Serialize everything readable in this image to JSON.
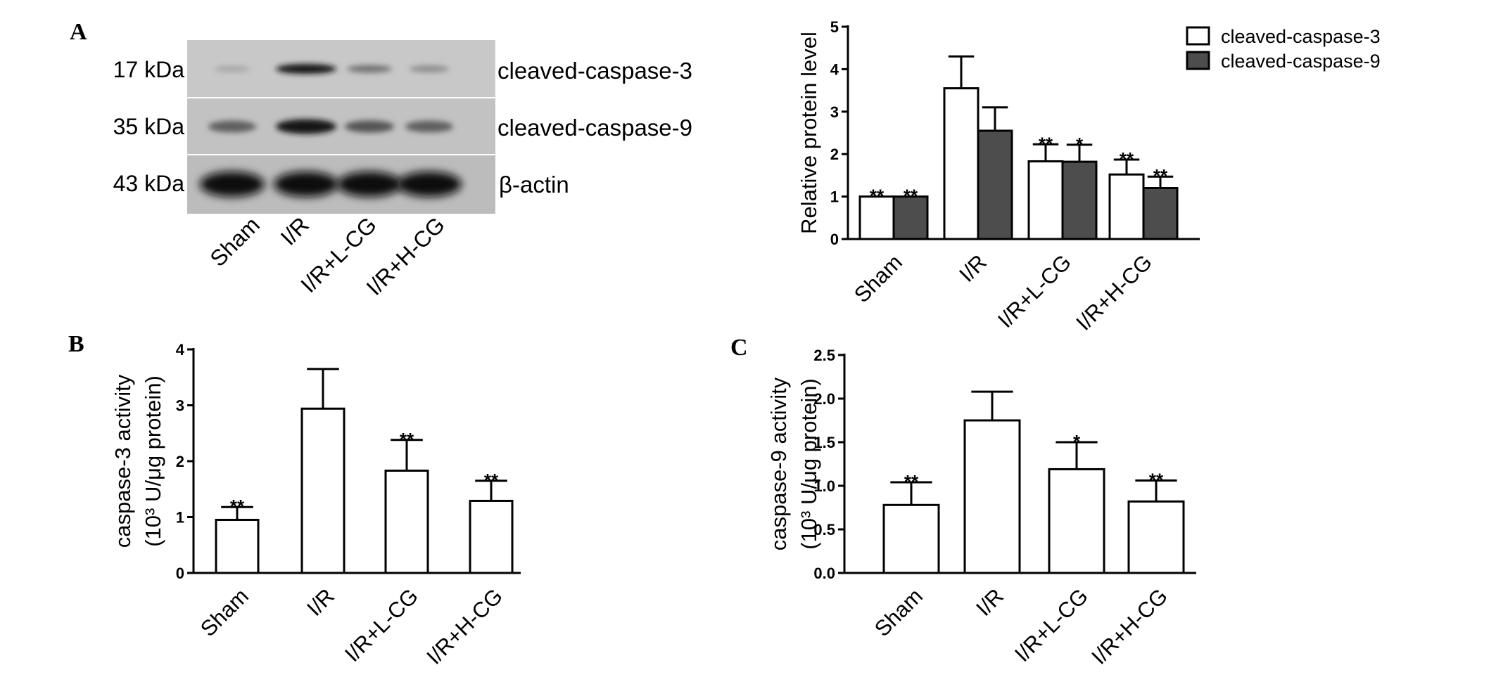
{
  "panels": {
    "a": "A",
    "b": "B",
    "c": "C"
  },
  "blot": {
    "rows": [
      {
        "marker": "17 kDa",
        "protein": "cleaved-caspase-3",
        "intensity": [
          0.15,
          0.95,
          0.45,
          0.3
        ]
      },
      {
        "marker": "35 kDa",
        "protein": "cleaved-caspase-9",
        "intensity": [
          0.55,
          0.95,
          0.6,
          0.55
        ]
      },
      {
        "marker": "43 kDa",
        "protein": "β-actin",
        "intensity": [
          1,
          1,
          1,
          1
        ]
      }
    ],
    "lanes": [
      "Sham",
      "I/R",
      "I/R+L-CG",
      "I/R+H-CG"
    ]
  },
  "chart_data": [
    {
      "id": "A",
      "type": "bar",
      "categories": [
        "Sham",
        "I/R",
        "I/R+L-CG",
        "I/R+H-CG"
      ],
      "ylabel": "Relative protein level",
      "ylim": [
        0,
        5
      ],
      "yticks": [
        "0",
        "1",
        "2",
        "3",
        "4",
        "5"
      ],
      "legend": "top-right",
      "series": [
        {
          "name": "cleaved-caspase-3",
          "color": "#ffffff",
          "values": [
            1.0,
            3.55,
            1.83,
            1.52
          ],
          "errors": [
            0.0,
            0.75,
            0.4,
            0.35
          ],
          "stars": [
            "**",
            "",
            "**",
            "**"
          ]
        },
        {
          "name": "cleaved-caspase-9",
          "color": "#4d4d4d",
          "values": [
            1.0,
            2.55,
            1.82,
            1.2
          ],
          "errors": [
            0.0,
            0.55,
            0.4,
            0.27
          ],
          "stars": [
            "**",
            "",
            "*",
            "**"
          ]
        }
      ]
    },
    {
      "id": "B",
      "type": "bar",
      "categories": [
        "Sham",
        "I/R",
        "I/R+L-CG",
        "I/R+H-CG"
      ],
      "ylabel": "caspase-3 activity",
      "ylabel2": "(10³ U/μg protein)",
      "ylim": [
        0,
        4
      ],
      "yticks": [
        "0",
        "1",
        "2",
        "3",
        "4"
      ],
      "series": [
        {
          "color": "#ffffff",
          "values": [
            0.95,
            2.94,
            1.83,
            1.29
          ],
          "errors": [
            0.23,
            0.71,
            0.55,
            0.36
          ],
          "stars": [
            "**",
            "",
            "**",
            "**"
          ]
        }
      ]
    },
    {
      "id": "C",
      "type": "bar",
      "categories": [
        "Sham",
        "I/R",
        "I/R+L-CG",
        "I/R+H-CG"
      ],
      "ylabel": "caspase-9 activity",
      "ylabel2": "(10³ U/μg protein)",
      "ylim": [
        0,
        2.5
      ],
      "yticks": [
        "0.0",
        "0.5",
        "1.0",
        "1.5",
        "2.0",
        "2.5"
      ],
      "series": [
        {
          "color": "#ffffff",
          "values": [
            0.78,
            1.75,
            1.19,
            0.82
          ],
          "errors": [
            0.26,
            0.33,
            0.31,
            0.24
          ],
          "stars": [
            "**",
            "",
            "*",
            "**"
          ]
        }
      ]
    }
  ]
}
